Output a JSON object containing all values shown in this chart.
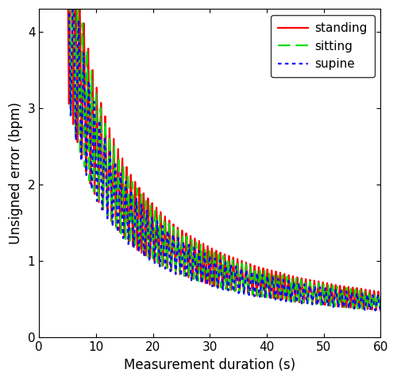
{
  "xlabel": "Measurement duration (s)",
  "ylabel": "Unsigned error (bpm)",
  "xlim": [
    0,
    60
  ],
  "ylim": [
    0,
    4.3
  ],
  "xticks": [
    0,
    10,
    20,
    30,
    40,
    50,
    60
  ],
  "yticks": [
    0,
    1,
    2,
    3,
    4
  ],
  "standing_color": "#ff0000",
  "sitting_color": "#00dd00",
  "supine_color": "#0000ff",
  "legend_labels": [
    "standing",
    "sitting",
    "supine"
  ],
  "linewidth": 1.6,
  "background_color": "#ffffff",
  "figsize": [
    5.0,
    4.79
  ],
  "dpi": 100
}
